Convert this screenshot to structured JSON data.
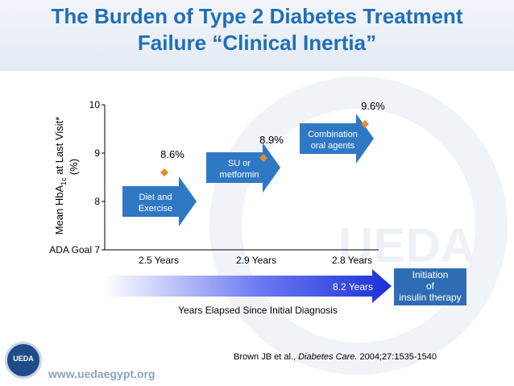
{
  "title_line1": "The Burden of Type 2 Diabetes Treatment",
  "title_line2": "Failure “Clinical Inertia”",
  "chart_data": {
    "type": "scatter",
    "title": "The Burden of Type 2 Diabetes Treatment Failure “Clinical Inertia”",
    "ylabel_parts": {
      "pre": "Mean HbA",
      "sub": "1c",
      "post": " at Last Visit*",
      "line2": "(%)"
    },
    "xlabel": "Years Elapsed Since Initial Diagnosis",
    "ylim": [
      7,
      10
    ],
    "yticks": [
      {
        "value": 10,
        "label": "10"
      },
      {
        "value": 9,
        "label": "9"
      },
      {
        "value": 8,
        "label": "8"
      },
      {
        "value": 7,
        "label": "ADA Goal 7"
      }
    ],
    "points": [
      {
        "stage": 1,
        "value": 8.6,
        "label": "8.6%"
      },
      {
        "stage": 2,
        "value": 8.9,
        "label": "8.9%"
      },
      {
        "stage": 3,
        "value": 9.6,
        "label": "9.6%"
      }
    ],
    "arrows": [
      {
        "line1": "Diet and",
        "line2": "Exercise",
        "level": 8
      },
      {
        "line1": "SU or",
        "line2": "metformin",
        "level": 8.7
      },
      {
        "line1": "Combination",
        "line2": "oral agents",
        "level": 9.3
      }
    ],
    "durations": [
      "2.5 Years",
      "2.9 Years",
      "2.8 Years"
    ],
    "total_duration": "8.2 Years",
    "insulin_box": {
      "line1": "Initiation",
      "line2": "of",
      "line3": "insulin therapy"
    },
    "colors": {
      "marker": "#e88a2a",
      "arrow": "#2f78c4",
      "title": "#1f6fb5",
      "box": "#2e6db4"
    }
  },
  "citation": {
    "pre": "Brown JB et al., ",
    "journal": "Diabetes Care.",
    "post": " 2004;27:1535-1540"
  },
  "footer_url": "www.uedaegypt.org",
  "logo_text": "UEDA"
}
